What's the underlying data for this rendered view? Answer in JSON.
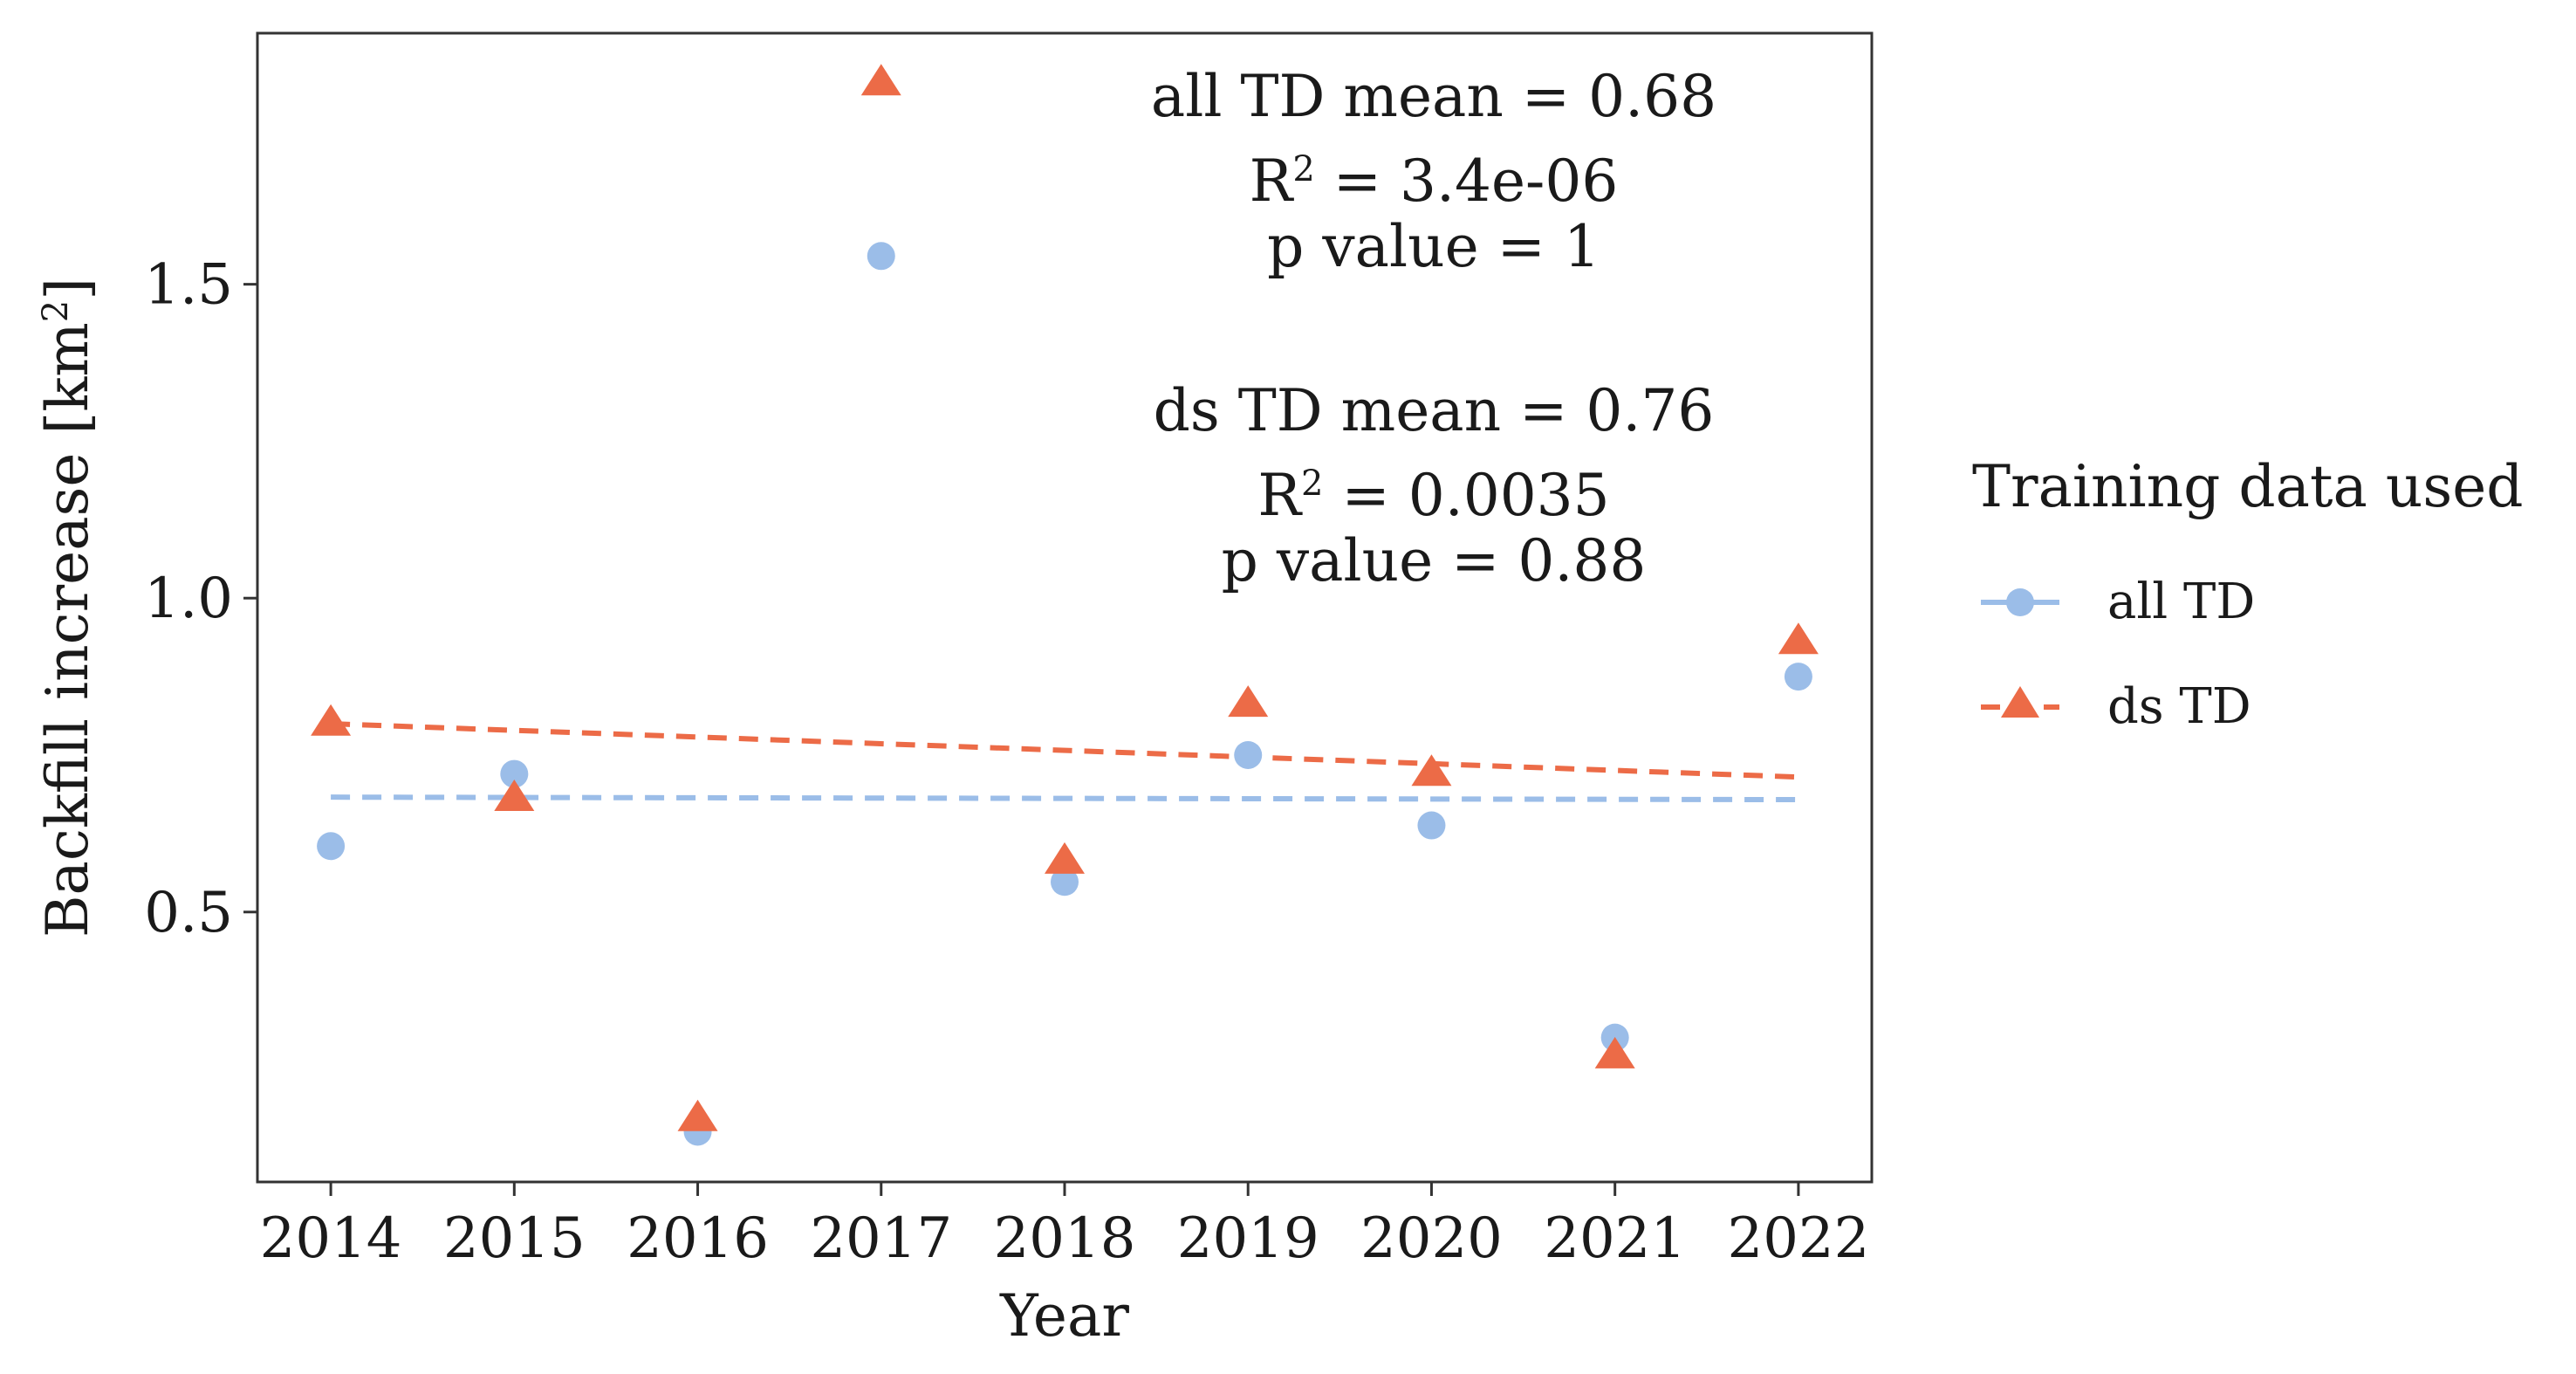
{
  "chart_data": {
    "type": "scatter",
    "x": [
      2014,
      2015,
      2016,
      2017,
      2018,
      2019,
      2020,
      2021,
      2022
    ],
    "x_ticks": [
      "2014",
      "2015",
      "2016",
      "2017",
      "2018",
      "2019",
      "2020",
      "2021",
      "2022"
    ],
    "y_ticks": [
      "0.5",
      "1.0",
      "1.5"
    ],
    "y_tick_values": [
      0.5,
      1.0,
      1.5
    ],
    "xlabel": "Year",
    "ylabel": "Backfill increase [km",
    "ylabel_sup": "2",
    "ylabel_end": "]",
    "xlim": [
      2013.6,
      2022.4
    ],
    "ylim": [
      0.07,
      1.9
    ],
    "grid": false,
    "legend": {
      "title": "Training data used",
      "placement": "right"
    },
    "series": [
      {
        "name": "all TD",
        "marker": "circle",
        "color": "#9bbde8",
        "values": [
          0.605,
          0.72,
          0.15,
          1.545,
          0.548,
          0.75,
          0.638,
          0.3,
          0.875
        ],
        "trend": [
          0.683,
          0.679
        ]
      },
      {
        "name": "ds TD",
        "marker": "triangle",
        "color": "#ec6b47",
        "values": [
          0.8,
          0.68,
          0.17,
          1.82,
          0.58,
          0.83,
          0.72,
          0.27,
          0.93
        ],
        "trend": [
          0.8,
          0.715
        ]
      }
    ],
    "annotations": {
      "all": {
        "mean": "all TD mean = 0.68",
        "r2_prefix": "R",
        "r2_sup": "2",
        "r2_value": " = 3.4e-06",
        "p": "p value = 1"
      },
      "ds": {
        "mean": "ds TD mean = 0.76",
        "r2_prefix": "R",
        "r2_sup": "2",
        "r2_value": " = 0.0035",
        "p": "p value = 0.88"
      }
    }
  }
}
